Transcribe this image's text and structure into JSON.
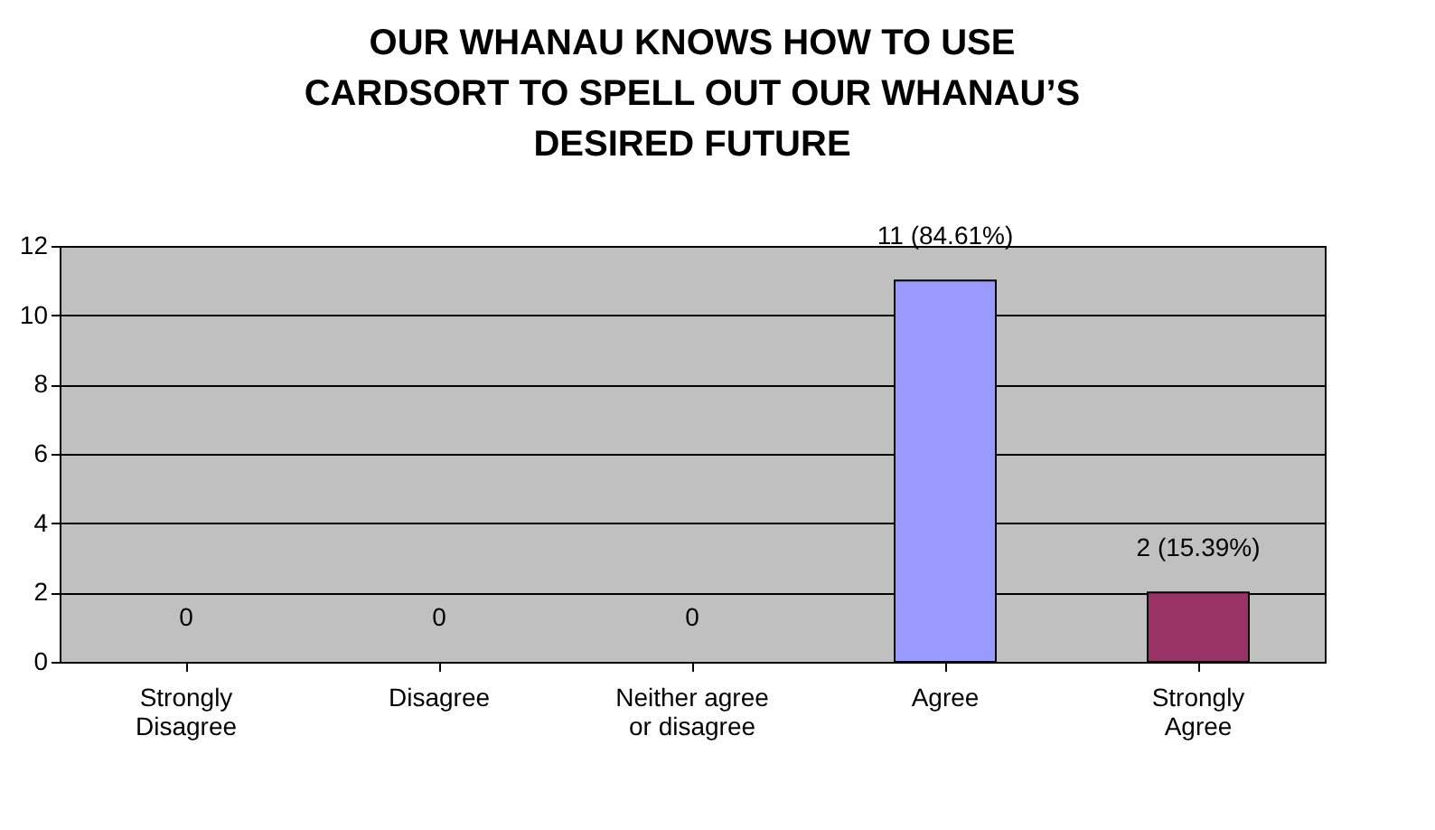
{
  "chart_data": {
    "type": "bar",
    "title": "OUR WHANAU KNOWS HOW TO USE CARDSORT TO SPELL OUT OUR WHANAU’S DESIRED FUTURE",
    "categories": [
      "Strongly Disagree",
      "Disagree",
      "Neither agree or disagree",
      "Agree",
      "Strongly Agree"
    ],
    "values": [
      0,
      0,
      0,
      11,
      2
    ],
    "colors": [
      "#9999ff",
      "#9999ff",
      "#9999ff",
      "#9999ff",
      "#993366"
    ],
    "value_labels": [
      "0",
      "0",
      "0",
      "11 (84.61%)",
      "2 (15.39%)"
    ],
    "ylim": [
      0,
      12
    ],
    "yticks": [
      0,
      2,
      4,
      6,
      8,
      10,
      12
    ],
    "grid": "y"
  }
}
